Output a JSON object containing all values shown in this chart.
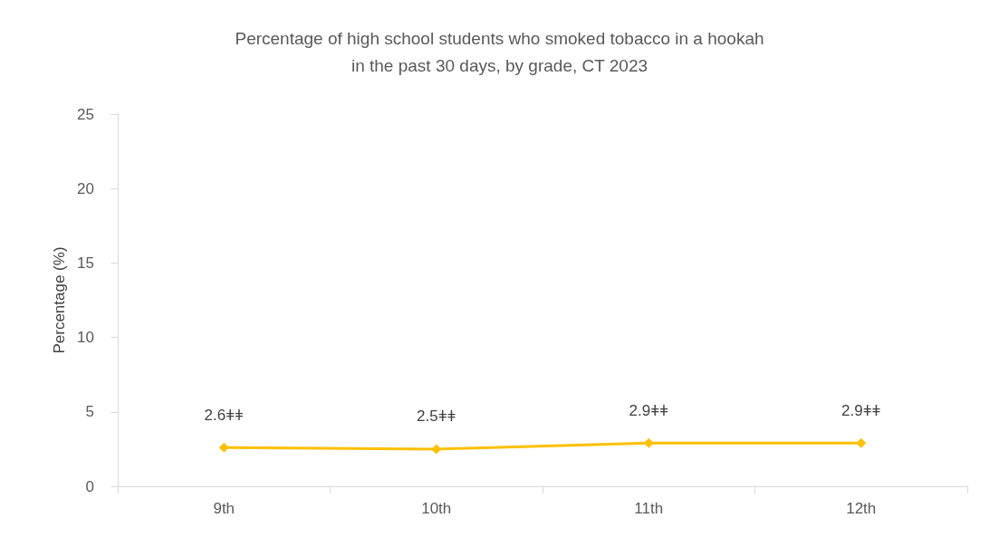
{
  "chart_data": {
    "type": "line",
    "title": "Percentage of high school students who smoked tobacco in a hookah\nin the past 30 days, by grade, CT 2023",
    "ylabel": "Percentage (%)",
    "categories": [
      "9th",
      "10th",
      "11th",
      "12th"
    ],
    "series": [
      {
        "color": "#ffc000",
        "values": [
          2.6,
          2.5,
          2.9,
          2.9
        ]
      }
    ],
    "value_labels": [
      "2.6ǂǂ",
      "2.5ǂǂ",
      "2.9ǂǂ",
      "2.9ǂǂ"
    ],
    "ylim": [
      0,
      25
    ],
    "yticks": [
      0,
      5,
      10,
      15,
      20,
      25
    ],
    "grid": false,
    "marker": "diamond",
    "line_style": "solid"
  }
}
